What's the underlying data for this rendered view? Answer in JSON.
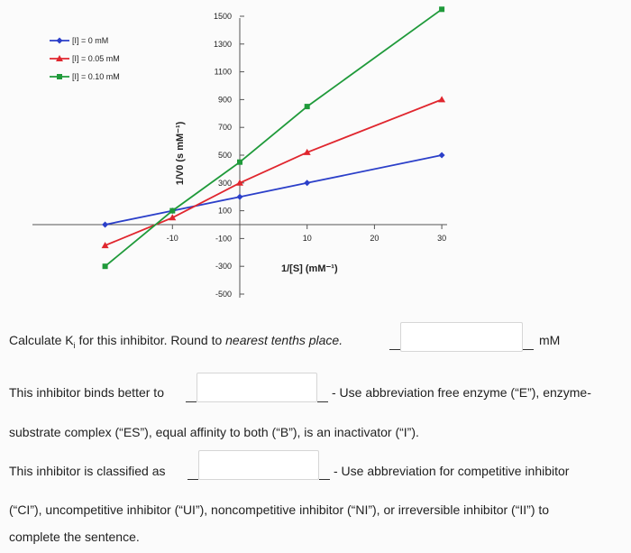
{
  "chart_data": {
    "type": "line",
    "title": "",
    "xlabel": "1/[S] (mM⁻¹)",
    "ylabel": "1/V0 (s mM⁻¹)",
    "xlim": [
      -22,
      33
    ],
    "ylim": [
      -600,
      1600
    ],
    "x_ticks": [
      -10,
      10,
      20,
      30
    ],
    "y_ticks": [
      1500,
      1300,
      1100,
      900,
      700,
      500,
      300,
      100,
      -100,
      -300,
      -500
    ],
    "legend_position": "top-left",
    "grid": false,
    "series": [
      {
        "name": "[I] = 0 mM",
        "color": "#2b3fc9",
        "marker": "diamond",
        "x": [
          -20,
          -10,
          0,
          10,
          30
        ],
        "y": [
          0,
          100,
          200,
          300,
          500
        ]
      },
      {
        "name": "[I] = 0.05 mM",
        "color": "#e0262e",
        "marker": "triangle",
        "x": [
          -20,
          -10,
          0,
          10,
          30
        ],
        "y": [
          -150,
          50,
          300,
          520,
          900
        ]
      },
      {
        "name": "[I] = 0.10 mM",
        "color": "#1f9a3a",
        "marker": "square",
        "x": [
          -20,
          -10,
          0,
          10,
          30
        ],
        "y": [
          -300,
          100,
          450,
          850,
          1550
        ]
      }
    ]
  },
  "questions": {
    "q1_text_pre": "Calculate K",
    "q1_sub": "i",
    "q1_text_post": " for this inhibitor. Round to ",
    "q1_italic": "nearest tenths place.",
    "q1_unit": "mM",
    "q2_pre": "This inhibitor binds better to",
    "q2_post": "- Use abbreviation free enzyme (“E”), enzyme-",
    "q2_line2": "substrate complex (“ES”), equal affinity to both (“B”), is an inactivator (“I”).",
    "q3_pre": "This inhibitor is classified as",
    "q3_post": "- Use abbreviation for competitive inhibitor",
    "q3_line2": "(“CI”), uncompetitive inhibitor (“UI”), noncompetitive inhibitor (“NI”), or irreversible inhibitor (“II”) to",
    "q3_line3": "complete the sentence."
  },
  "inputs": {
    "ki_value": "",
    "binds_better_value": "",
    "classification_value": ""
  }
}
